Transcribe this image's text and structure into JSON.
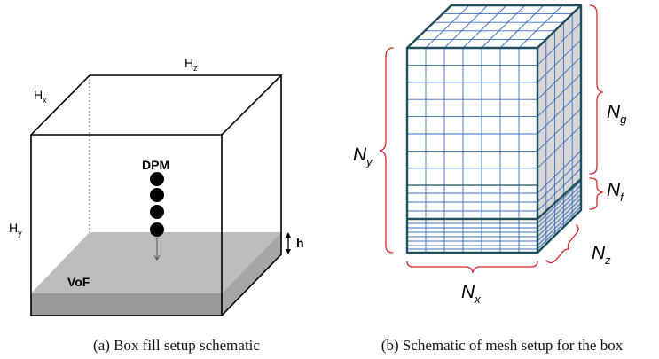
{
  "panel_a": {
    "caption": "(a) Box fill setup schematic",
    "labels": {
      "hx_base": "H",
      "hx_sub": "x",
      "hz_base": "H",
      "hz_sub": "z",
      "hy_base": "H",
      "hy_sub": "y",
      "h": "h",
      "dpm": "DPM",
      "vof": "VoF"
    }
  },
  "panel_b": {
    "caption": "(b) Schematic of mesh setup for the box",
    "labels": {
      "ny_base": "N",
      "ny_sub": "y",
      "ng_base": "N",
      "ng_sub": "g",
      "nf_base": "N",
      "nf_sub": "f",
      "nz_base": "N",
      "nz_sub": "z",
      "nx_base": "N",
      "nx_sub": "x"
    }
  },
  "colors": {
    "mesh_line": "#3a6fbf",
    "mesh_border": "#1f4f5c",
    "brace": "#d9262b",
    "liquid_top": "#bdbdbd",
    "liquid_front": "#9a9a9a",
    "side_face": "#d7d7d7"
  }
}
